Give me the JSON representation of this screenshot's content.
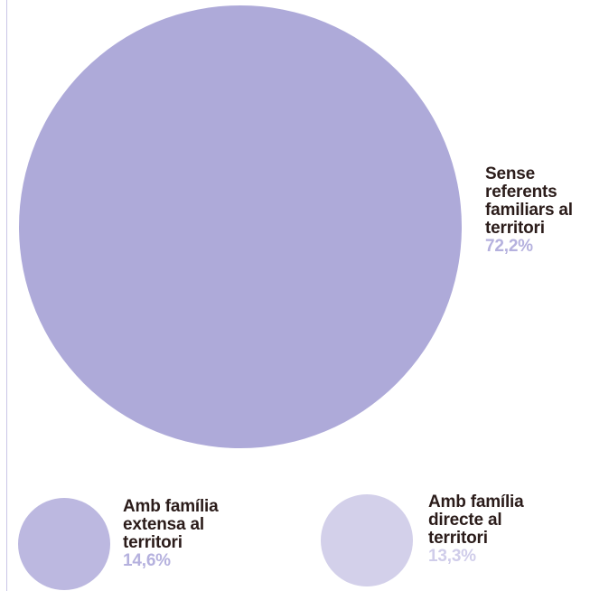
{
  "chart_data": {
    "type": "bubble",
    "title": "",
    "categories": [
      "Sense referents familiars al territori",
      "Amb família extensa al territori",
      "Amb família directe al territori"
    ],
    "values": [
      72.2,
      14.6,
      13.3
    ],
    "value_labels": [
      "72,2%",
      "14,6%",
      "13,3%"
    ],
    "label_lines": [
      "Sense\nreferents\nfamiliars al\nterritori",
      "Amb família\nextensa al\nterritori",
      "Amb família\ndirecte al\nterritori"
    ],
    "colors": [
      "#aeaad9",
      "#bcb8e0",
      "#d3d0ea"
    ],
    "label_color": "#2b1c1a",
    "value_colors": [
      "#b5b1de",
      "#b5b1de",
      "#d0cdea"
    ]
  }
}
